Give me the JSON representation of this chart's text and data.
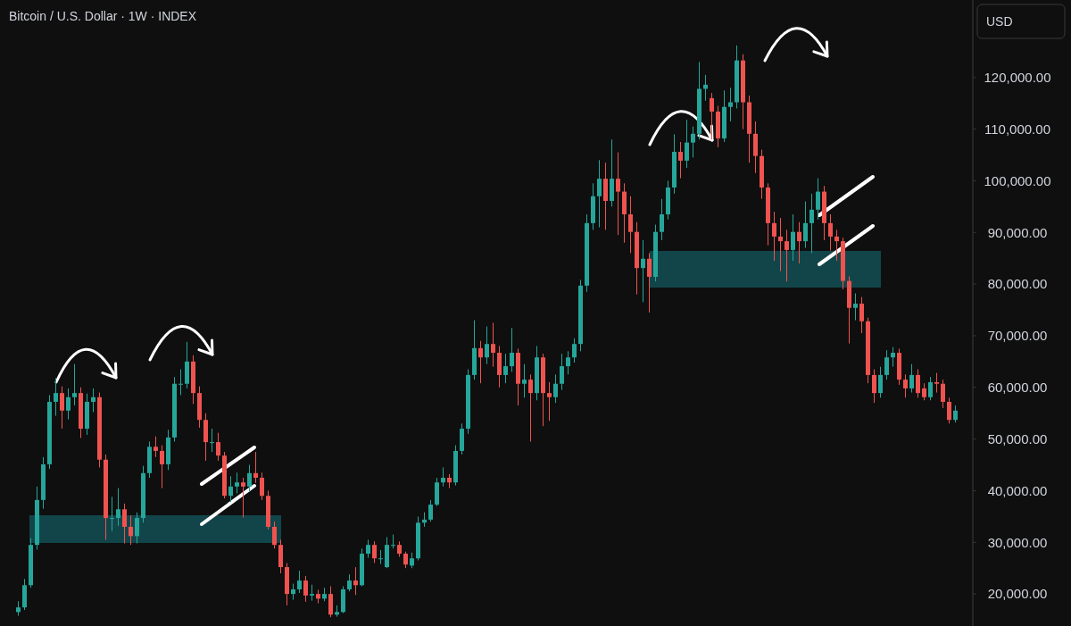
{
  "chart_data": {
    "type": "candlestick",
    "title": "Bitcoin / U.S. Dollar · 1W · INDEX",
    "categories": [
      null,
      null,
      null,
      null,
      null,
      null,
      null,
      null,
      null,
      null,
      null,
      null,
      null,
      null,
      null,
      null,
      null,
      null,
      null,
      null,
      null,
      null,
      null,
      null,
      null,
      null,
      null,
      null,
      null,
      null,
      null,
      null,
      null,
      null,
      null,
      null,
      null,
      null,
      null,
      null,
      null,
      null,
      null,
      null,
      null,
      null,
      null,
      null,
      null,
      null,
      null,
      null,
      null,
      null,
      null,
      null,
      null,
      null,
      null,
      null,
      null,
      null,
      null,
      null,
      null,
      null,
      null,
      null,
      null,
      null,
      null,
      null,
      null,
      null,
      null,
      null,
      null,
      null,
      null,
      null,
      null,
      null,
      null,
      null,
      null,
      null,
      null,
      null,
      null,
      null,
      null,
      null,
      null,
      null,
      null,
      null,
      null,
      null,
      null,
      null,
      null,
      null,
      null,
      null,
      null,
      null,
      null,
      null,
      null,
      null,
      null,
      null,
      null,
      null,
      null,
      null,
      null,
      null,
      null,
      null,
      null,
      null,
      null,
      null,
      null,
      null,
      null,
      null,
      null,
      null,
      null,
      null,
      null,
      null,
      null,
      null,
      null,
      null,
      null,
      null,
      null,
      null,
      null,
      null,
      null,
      null,
      null,
      null,
      null,
      null,
      null
    ],
    "ohlc": [
      [
        16500,
        18600,
        15800,
        17400
      ],
      [
        17400,
        22900,
        16900,
        21700
      ],
      [
        21700,
        30800,
        21200,
        29500
      ],
      [
        29500,
        40800,
        28600,
        38200
      ],
      [
        38200,
        46500,
        36500,
        45100
      ],
      [
        45100,
        58500,
        44200,
        57200
      ],
      [
        57200,
        61800,
        54500,
        58900
      ],
      [
        58900,
        60200,
        52000,
        55500
      ],
      [
        55500,
        59800,
        53800,
        58100
      ],
      [
        58100,
        64500,
        56500,
        58900
      ],
      [
        58900,
        60000,
        50200,
        52000
      ],
      [
        52000,
        58800,
        50800,
        57200
      ],
      [
        57200,
        59800,
        55200,
        58100
      ],
      [
        58100,
        59000,
        44500,
        46000
      ],
      [
        46000,
        47000,
        30500,
        34700
      ],
      [
        34700,
        38800,
        32200,
        34700
      ],
      [
        34700,
        40500,
        33200,
        36400
      ],
      [
        36400,
        37500,
        29800,
        33000
      ],
      [
        33000,
        35200,
        29500,
        31200
      ],
      [
        31200,
        35800,
        29800,
        34700
      ],
      [
        34700,
        44800,
        33800,
        43400
      ],
      [
        43400,
        49500,
        42500,
        48500
      ],
      [
        48500,
        50500,
        46500,
        47700
      ],
      [
        47700,
        48800,
        40500,
        45100
      ],
      [
        45100,
        51800,
        44000,
        50300
      ],
      [
        50300,
        62000,
        49500,
        60700
      ],
      [
        60700,
        63500,
        58500,
        60700
      ],
      [
        60700,
        68800,
        59800,
        65000
      ],
      [
        65000,
        66200,
        56800,
        58900
      ],
      [
        58900,
        60200,
        52200,
        53700
      ],
      [
        53700,
        55000,
        45800,
        49400
      ],
      [
        49400,
        52000,
        47500,
        49400
      ],
      [
        49400,
        51200,
        45800,
        46800
      ],
      [
        46800,
        47500,
        38500,
        39000
      ],
      [
        39000,
        42800,
        37800,
        40800
      ],
      [
        40800,
        43500,
        39500,
        41600
      ],
      [
        41600,
        42500,
        34800,
        40800
      ],
      [
        40800,
        45000,
        39800,
        43400
      ],
      [
        43400,
        47500,
        41500,
        42500
      ],
      [
        42500,
        43500,
        38200,
        39000
      ],
      [
        39000,
        40000,
        32500,
        33000
      ],
      [
        33000,
        34000,
        28800,
        29500
      ],
      [
        29500,
        30500,
        24000,
        25200
      ],
      [
        25200,
        26000,
        17800,
        20000
      ],
      [
        20000,
        22000,
        18900,
        20900
      ],
      [
        20900,
        24500,
        20200,
        22600
      ],
      [
        22600,
        23500,
        18500,
        19700
      ],
      [
        19700,
        21800,
        18700,
        20000
      ],
      [
        20000,
        20800,
        18200,
        19100
      ],
      [
        19100,
        21200,
        18600,
        20000
      ],
      [
        20000,
        21500,
        15500,
        16000
      ],
      [
        16000,
        17800,
        15600,
        16500
      ],
      [
        16500,
        21500,
        16300,
        20900
      ],
      [
        20900,
        23800,
        20500,
        22600
      ],
      [
        22600,
        25200,
        19800,
        21700
      ],
      [
        21700,
        28800,
        21500,
        27800
      ],
      [
        27800,
        30500,
        27000,
        29500
      ],
      [
        29500,
        30200,
        26000,
        26900
      ],
      [
        26900,
        28500,
        25800,
        26900
      ],
      [
        25200,
        31000,
        25000,
        29500
      ],
      [
        29500,
        31500,
        28800,
        29500
      ],
      [
        29500,
        30200,
        27200,
        27800
      ],
      [
        27800,
        28200,
        25000,
        25700
      ],
      [
        25500,
        28000,
        25000,
        26900
      ],
      [
        26900,
        35000,
        26500,
        33800
      ],
      [
        33800,
        35800,
        33000,
        34400
      ],
      [
        34400,
        38200,
        34000,
        37300
      ],
      [
        37300,
        42500,
        37000,
        41600
      ],
      [
        41600,
        44500,
        40800,
        42500
      ],
      [
        42500,
        43200,
        40500,
        41600
      ],
      [
        41600,
        48800,
        41000,
        47700
      ],
      [
        47700,
        53000,
        47000,
        52000
      ],
      [
        52000,
        63500,
        51000,
        62400
      ],
      [
        62400,
        73000,
        61500,
        67600
      ],
      [
        67600,
        69000,
        60800,
        65800
      ],
      [
        65800,
        71800,
        64500,
        68400
      ],
      [
        68400,
        72500,
        64000,
        66700
      ],
      [
        66700,
        68000,
        60000,
        62400
      ],
      [
        62400,
        66500,
        60800,
        64100
      ],
      [
        64100,
        71500,
        63000,
        66700
      ],
      [
        66700,
        67500,
        56500,
        60700
      ],
      [
        60700,
        64500,
        58000,
        61500
      ],
      [
        61500,
        62500,
        49500,
        58900
      ],
      [
        58900,
        68000,
        57500,
        65800
      ],
      [
        65800,
        66500,
        52500,
        58900
      ],
      [
        58900,
        61000,
        53500,
        58100
      ],
      [
        58100,
        62500,
        57000,
        60700
      ],
      [
        60700,
        66500,
        59500,
        64100
      ],
      [
        64100,
        67000,
        62500,
        65800
      ],
      [
        65800,
        69500,
        64800,
        68400
      ],
      [
        68400,
        80800,
        67000,
        79700
      ],
      [
        79700,
        93500,
        78500,
        91800
      ],
      [
        91800,
        99500,
        90500,
        97000
      ],
      [
        97000,
        104000,
        91000,
        100400
      ],
      [
        100400,
        103500,
        90500,
        96100
      ],
      [
        96100,
        108000,
        95000,
        100400
      ],
      [
        100400,
        105500,
        89500,
        97900
      ],
      [
        97900,
        99500,
        88000,
        93500
      ],
      [
        93500,
        97000,
        86000,
        90100
      ],
      [
        90100,
        92000,
        78000,
        83100
      ],
      [
        83100,
        88500,
        76500,
        84900
      ],
      [
        84900,
        86000,
        74500,
        81400
      ],
      [
        81400,
        91500,
        80500,
        90100
      ],
      [
        90100,
        96500,
        88500,
        93500
      ],
      [
        93500,
        100000,
        92500,
        98700
      ],
      [
        98700,
        109000,
        97500,
        105600
      ],
      [
        105600,
        107500,
        100500,
        103900
      ],
      [
        103900,
        111800,
        102500,
        107400
      ],
      [
        107400,
        110500,
        104500,
        109100
      ],
      [
        109100,
        123000,
        108000,
        117800
      ],
      [
        117800,
        120500,
        115500,
        118600
      ],
      [
        116000,
        117000,
        108000,
        113400
      ],
      [
        113400,
        114500,
        106500,
        108200
      ],
      [
        108200,
        117500,
        107500,
        114300
      ],
      [
        114300,
        118000,
        111500,
        115200
      ],
      [
        115200,
        126200,
        114000,
        123300
      ],
      [
        123300,
        124500,
        110000,
        115200
      ],
      [
        115200,
        116500,
        103500,
        109100
      ],
      [
        109100,
        111500,
        101500,
        104800
      ],
      [
        104800,
        106000,
        96500,
        98700
      ],
      [
        98700,
        99500,
        87500,
        91800
      ],
      [
        91800,
        94000,
        84500,
        89200
      ],
      [
        89200,
        92800,
        82500,
        88300
      ],
      [
        88300,
        90500,
        80500,
        86600
      ],
      [
        86600,
        93500,
        84500,
        90100
      ],
      [
        90100,
        92000,
        84000,
        88300
      ],
      [
        88300,
        96000,
        87000,
        91800
      ],
      [
        91800,
        97500,
        86000,
        94400
      ],
      [
        94400,
        100500,
        92500,
        97900
      ],
      [
        97900,
        99000,
        88500,
        91800
      ],
      [
        91800,
        93500,
        86500,
        89200
      ],
      [
        89200,
        90500,
        84500,
        88300
      ],
      [
        88300,
        89000,
        79000,
        80600
      ],
      [
        80600,
        81500,
        68500,
        75400
      ],
      [
        75400,
        78200,
        73000,
        76200
      ],
      [
        76200,
        77500,
        70500,
        72800
      ],
      [
        72800,
        73500,
        60800,
        62400
      ],
      [
        62400,
        63500,
        57000,
        58900
      ],
      [
        58900,
        64000,
        58000,
        62400
      ],
      [
        62400,
        67200,
        61500,
        65800
      ],
      [
        65800,
        67800,
        64000,
        66700
      ],
      [
        66700,
        67500,
        60500,
        61500
      ],
      [
        61500,
        62500,
        58000,
        59800
      ],
      [
        59800,
        64500,
        59000,
        62400
      ],
      [
        62400,
        63500,
        58000,
        58900
      ],
      [
        59800,
        60800,
        57500,
        58100
      ],
      [
        58100,
        62000,
        57500,
        61000
      ],
      [
        61000,
        62800,
        59000,
        60700
      ],
      [
        60700,
        61500,
        56000,
        57200
      ],
      [
        57200,
        58000,
        53000,
        53700
      ],
      [
        53700,
        56500,
        53200,
        55500
      ]
    ],
    "ylim": [
      13800,
      135000
    ],
    "yticks": [
      {
        "value": 20000,
        "label": "20,000.00"
      },
      {
        "value": 30000,
        "label": "30,000.00"
      },
      {
        "value": 40000,
        "label": "40,000.00"
      },
      {
        "value": 50000,
        "label": "50,000.00"
      },
      {
        "value": 60000,
        "label": "60,000.00"
      },
      {
        "value": 70000,
        "label": "70,000.00"
      },
      {
        "value": 80000,
        "label": "80,000.00"
      },
      {
        "value": 90000,
        "label": "90,000.00"
      },
      {
        "value": 100000,
        "label": "100,000.00"
      },
      {
        "value": 110000,
        "label": "110,000.00"
      },
      {
        "value": 120000,
        "label": "120,000.00"
      }
    ],
    "tick_labels": "y",
    "annotations": [
      "USD"
    ]
  }
}
